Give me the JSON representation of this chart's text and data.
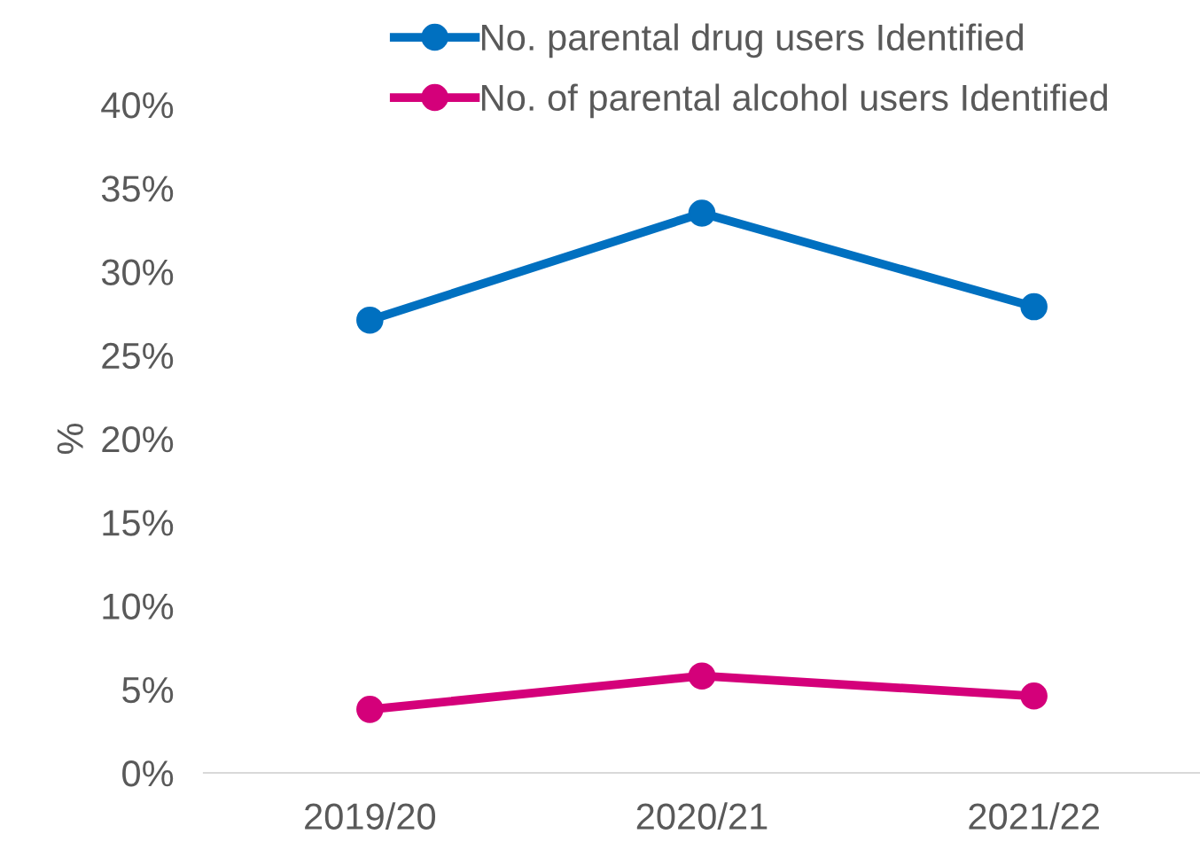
{
  "chart_data": {
    "type": "line",
    "ylabel": "%",
    "categories": [
      "2019/20",
      "2020/21",
      "2021/22"
    ],
    "series": [
      {
        "name": "No. parental drug users Identified",
        "color": "#0070c0",
        "values": [
          27.1,
          33.5,
          27.9
        ]
      },
      {
        "name": "No. of parental alcohol users Identified",
        "color": "#d4007a",
        "values": [
          3.8,
          5.8,
          4.6
        ]
      }
    ],
    "ylim": [
      0,
      40
    ],
    "yticks": [
      {
        "value": 0,
        "label": "0%"
      },
      {
        "value": 5,
        "label": "5%"
      },
      {
        "value": 10,
        "label": "10%"
      },
      {
        "value": 15,
        "label": "15%"
      },
      {
        "value": 20,
        "label": "20%"
      },
      {
        "value": 25,
        "label": "25%"
      },
      {
        "value": 30,
        "label": "30%"
      },
      {
        "value": 35,
        "label": "35%"
      },
      {
        "value": 40,
        "label": "40%"
      }
    ],
    "grid": false,
    "legend": "top",
    "marker": "circle",
    "line_style": "solid"
  }
}
